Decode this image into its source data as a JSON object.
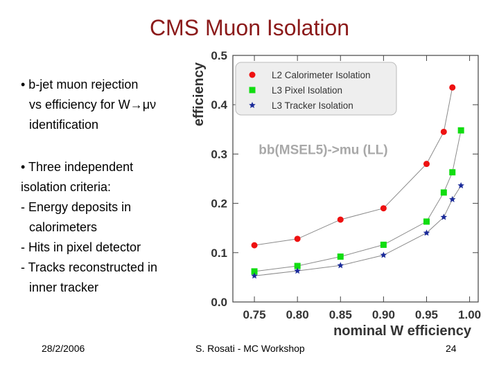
{
  "slide": {
    "title": "CMS Muon Isolation",
    "bullets": [
      "• b-jet muon rejection",
      "vs efficiency for W→μν",
      "identification",
      "• Three independent",
      "isolation criteria:",
      "- Energy deposits in",
      "calorimeters",
      "- Hits in pixel detector",
      "- Tracks reconstructed in",
      "inner tracker"
    ],
    "footer": {
      "date": "28/2/2006",
      "center": "S. Rosati - MC Workshop",
      "page": "24"
    }
  },
  "chart_data": {
    "type": "scatter",
    "title": "",
    "annotation": "bb(MSEL5)->mu (LL)",
    "xlabel": "nominal W efficiency",
    "ylabel": "efficiency",
    "xlim": [
      0.725,
      1.01
    ],
    "ylim": [
      0.0,
      0.5
    ],
    "xticks": [
      "0.75",
      "0.80",
      "0.85",
      "0.90",
      "0.95",
      "1.00"
    ],
    "yticks": [
      "0.0",
      "0.1",
      "0.2",
      "0.3",
      "0.4",
      "0.5"
    ],
    "legend_position": "top-right",
    "grid": false,
    "series": [
      {
        "name": "L2 Calorimeter Isolation",
        "marker": "circle",
        "color": "#ee1111",
        "x": [
          0.75,
          0.8,
          0.85,
          0.9,
          0.95,
          0.97,
          0.98
        ],
        "y": [
          0.115,
          0.128,
          0.167,
          0.19,
          0.28,
          0.345,
          0.435
        ]
      },
      {
        "name": "L3 Pixel Isolation",
        "marker": "square",
        "color": "#11dd11",
        "x": [
          0.75,
          0.8,
          0.85,
          0.9,
          0.95,
          0.97,
          0.98,
          0.99
        ],
        "y": [
          0.062,
          0.073,
          0.092,
          0.116,
          0.163,
          0.222,
          0.263,
          0.348
        ]
      },
      {
        "name": "L3 Tracker Isolation",
        "marker": "star",
        "color": "#1a2a99",
        "x": [
          0.75,
          0.8,
          0.85,
          0.9,
          0.95,
          0.97,
          0.98,
          0.99
        ],
        "y": [
          0.053,
          0.063,
          0.074,
          0.095,
          0.14,
          0.172,
          0.208,
          0.236
        ]
      }
    ]
  }
}
